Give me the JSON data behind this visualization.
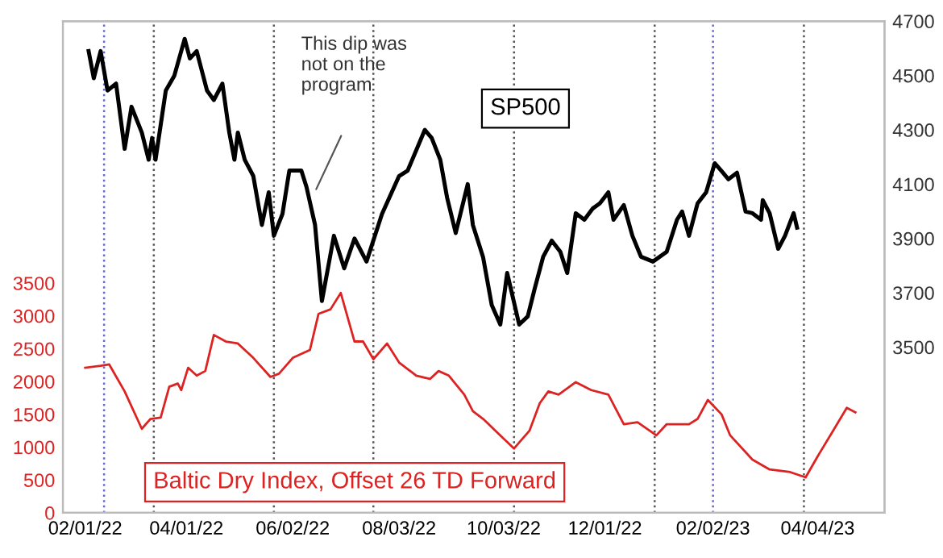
{
  "chart_data": {
    "type": "line",
    "xlim": [
      "2022-01-19",
      "2023-05-13"
    ],
    "xticks": [
      {
        "value": "2022-02-01",
        "label": "02/01/22"
      },
      {
        "value": "2022-04-01",
        "label": "04/01/22"
      },
      {
        "value": "2022-06-02",
        "label": "06/02/22"
      },
      {
        "value": "2022-08-03",
        "label": "08/03/22"
      },
      {
        "value": "2022-10-03",
        "label": "10/03/22"
      },
      {
        "value": "2022-12-01",
        "label": "12/01/22"
      },
      {
        "value": "2023-02-02",
        "label": "02/02/23"
      },
      {
        "value": "2023-04-04",
        "label": "04/04/23"
      }
    ],
    "ylim": [
      0,
      7490
    ],
    "yticks": [
      0,
      500,
      1000,
      1500,
      2000,
      2500,
      3000,
      3500
    ],
    "y2lim": [
      2890,
      4700
    ],
    "y2ticks": [
      3500,
      3700,
      3900,
      4100,
      4300,
      4500,
      4700
    ],
    "grid": false,
    "legend": false,
    "marker": "none",
    "line_style": "solid",
    "series": [
      {
        "name": "SP500",
        "color": "#000000",
        "axis": "y2",
        "x": [
          "2022-02-03",
          "2022-02-06",
          "2022-02-10",
          "2022-02-14",
          "2022-02-19",
          "2022-02-24",
          "2022-02-28",
          "2022-03-06",
          "2022-03-10",
          "2022-03-12",
          "2022-03-14",
          "2022-03-20",
          "2022-03-25",
          "2022-03-31",
          "2022-04-03",
          "2022-04-07",
          "2022-04-13",
          "2022-04-17",
          "2022-04-22",
          "2022-04-26",
          "2022-04-29",
          "2022-05-01",
          "2022-05-05",
          "2022-05-10",
          "2022-05-15",
          "2022-05-19",
          "2022-05-22",
          "2022-05-27",
          "2022-05-31",
          "2022-06-07",
          "2022-06-10",
          "2022-06-15",
          "2022-06-19",
          "2022-06-26",
          "2022-07-02",
          "2022-07-08",
          "2022-07-15",
          "2022-07-24",
          "2022-08-03",
          "2022-08-08",
          "2022-08-18",
          "2022-08-22",
          "2022-08-27",
          "2022-08-31",
          "2022-09-05",
          "2022-09-12",
          "2022-09-15",
          "2022-09-19",
          "2022-09-21",
          "2022-09-26",
          "2022-10-01",
          "2022-10-05",
          "2022-10-12",
          "2022-10-17",
          "2022-10-21",
          "2022-10-26",
          "2022-10-31",
          "2022-11-05",
          "2022-11-09",
          "2022-11-14",
          "2022-11-19",
          "2022-11-24",
          "2022-11-28",
          "2022-12-03",
          "2022-12-06",
          "2022-12-12",
          "2022-12-17",
          "2022-12-22",
          "2022-12-29",
          "2023-01-06",
          "2023-01-12",
          "2023-01-15",
          "2023-01-19",
          "2023-01-24",
          "2023-01-29",
          "2023-02-03",
          "2023-02-07",
          "2023-02-11",
          "2023-02-16",
          "2023-02-21",
          "2023-02-25",
          "2023-03-02",
          "2023-03-03",
          "2023-03-07",
          "2023-03-12",
          "2023-03-16",
          "2023-03-21",
          "2023-03-23"
        ],
        "values": [
          4590,
          4490,
          4590,
          4445,
          4470,
          4230,
          4385,
          4290,
          4190,
          4270,
          4190,
          4445,
          4500,
          4635,
          4563,
          4590,
          4445,
          4410,
          4470,
          4290,
          4190,
          4290,
          4190,
          4130,
          3950,
          4070,
          3910,
          3990,
          4150,
          4150,
          4090,
          3950,
          3670,
          3910,
          3790,
          3900,
          3815,
          3990,
          4130,
          4150,
          4300,
          4270,
          4190,
          4050,
          3920,
          4100,
          3950,
          3870,
          3830,
          3655,
          3583,
          3773,
          3583,
          3613,
          3714,
          3833,
          3892,
          3851,
          3773,
          3993,
          3969,
          4011,
          4029,
          4070,
          3969,
          4023,
          3910,
          3833,
          3815,
          3851,
          3969,
          3999,
          3910,
          4029,
          4070,
          4177,
          4148,
          4118,
          4142,
          3999,
          3993,
          3969,
          4041,
          3993,
          3862,
          3910,
          3993,
          3940
        ]
      },
      {
        "name": "Baltic Dry Index, Offset 26 TD Forward",
        "color": "#dd2222",
        "axis": "y",
        "x": [
          "2022-02-01",
          "2022-02-10",
          "2022-02-15",
          "2022-02-24",
          "2022-03-06",
          "2022-03-11",
          "2022-03-17",
          "2022-03-22",
          "2022-03-27",
          "2022-03-29",
          "2022-04-02",
          "2022-04-07",
          "2022-04-12",
          "2022-04-17",
          "2022-04-24",
          "2022-05-01",
          "2022-05-10",
          "2022-05-20",
          "2022-05-25",
          "2022-06-02",
          "2022-06-12",
          "2022-06-17",
          "2022-06-24",
          "2022-06-30",
          "2022-07-08",
          "2022-07-13",
          "2022-07-19",
          "2022-07-27",
          "2022-08-03",
          "2022-08-13",
          "2022-08-21",
          "2022-08-26",
          "2022-09-01",
          "2022-09-10",
          "2022-09-15",
          "2022-09-21",
          "2022-10-01",
          "2022-10-09",
          "2022-10-18",
          "2022-10-24",
          "2022-10-29",
          "2022-11-04",
          "2022-11-14",
          "2022-11-23",
          "2022-12-03",
          "2022-12-12",
          "2022-12-20",
          "2022-12-31",
          "2023-01-06",
          "2023-01-19",
          "2023-01-24",
          "2023-01-30",
          "2023-02-07",
          "2023-02-12",
          "2023-02-25",
          "2023-03-07",
          "2023-03-19",
          "2023-03-28",
          "2023-04-04",
          "2023-04-13",
          "2023-04-21",
          "2023-04-26"
        ],
        "values": [
          2210,
          2240,
          2260,
          1850,
          1280,
          1430,
          1450,
          1920,
          1970,
          1870,
          2210,
          2090,
          2160,
          2710,
          2610,
          2580,
          2360,
          2070,
          2120,
          2360,
          2480,
          3030,
          3100,
          3350,
          2610,
          2610,
          2340,
          2580,
          2290,
          2090,
          2040,
          2160,
          2090,
          1800,
          1550,
          1430,
          1180,
          980,
          1250,
          1670,
          1850,
          1800,
          1990,
          1870,
          1800,
          1350,
          1380,
          1180,
          1350,
          1350,
          1430,
          1720,
          1500,
          1180,
          810,
          660,
          620,
          540,
          860,
          1250,
          1600,
          1530
        ]
      }
    ],
    "ref_lines": [
      {
        "axis": "x",
        "value": "2022-02-12",
        "color": "#6666cc",
        "line_style": "dotted"
      },
      {
        "axis": "x",
        "value": "2022-03-13",
        "color": "#555555",
        "line_style": "dotted"
      },
      {
        "axis": "x",
        "value": "2022-05-22",
        "color": "#555555",
        "line_style": "dotted"
      },
      {
        "axis": "x",
        "value": "2022-07-19",
        "color": "#555555",
        "line_style": "dotted"
      },
      {
        "axis": "x",
        "value": "2022-10-09",
        "color": "#555555",
        "line_style": "dotted"
      },
      {
        "axis": "x",
        "value": "2022-12-30",
        "color": "#555555",
        "line_style": "dotted"
      },
      {
        "axis": "x",
        "value": "2023-02-02",
        "color": "#6666cc",
        "line_style": "dotted"
      },
      {
        "axis": "x",
        "value": "2023-03-27",
        "color": "#555555",
        "line_style": "dotted"
      }
    ],
    "annotations": [
      "This dip was\nnot on the\nprogram"
    ]
  }
}
